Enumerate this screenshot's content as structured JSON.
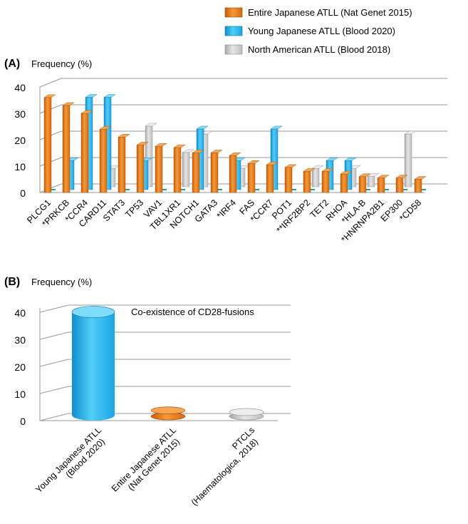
{
  "colors": {
    "japan": "#e87511",
    "young": "#19b2ee",
    "na": "#c7c7c7",
    "grid": "#999999",
    "teal": "#1aa0a6"
  },
  "legend": [
    {
      "key": "japan",
      "label": "Entire Japanese ATLL (Nat Genet 2015)"
    },
    {
      "key": "young",
      "label": "Young Japanese ATLL (Blood 2020)"
    },
    {
      "key": "na",
      "label": "North American ATLL (Blood 2018)"
    }
  ],
  "chart_data": [
    {
      "panel": "(A)",
      "type": "bar",
      "ylabel": "Frequency (%)",
      "ylim": [
        0,
        40
      ],
      "yticks": [
        "0",
        "10",
        "20",
        "30",
        "40"
      ],
      "grid": true,
      "legend_position": "top",
      "categories": [
        "PLCG1",
        "*PRKCB",
        "*CCR4",
        "CARD11",
        "STAT3",
        "TP53",
        "VAV1",
        "TBL1XR1",
        "NOTCH1",
        "GATA3",
        "*IRF4",
        "FAS",
        "*CCR7",
        "POT1",
        "**IRF2BP2",
        "TET2",
        "RHOA",
        "*HLA-B",
        "*HNRNPA2B1",
        "EP300",
        "*CD58"
      ],
      "series": [
        {
          "name": "Entire Japanese ATLL (Nat Genet 2015)",
          "key": "japan",
          "values": [
            36,
            33,
            30,
            24,
            21,
            18,
            17.5,
            17,
            15,
            15,
            14,
            11,
            10.5,
            9.5,
            8,
            8,
            7,
            6,
            5.5,
            5.5,
            5
          ]
        },
        {
          "name": "Young Japanese ATLL (Blood 2020)",
          "key": "young",
          "values": [
            0,
            11,
            35,
            35,
            0,
            11,
            0,
            0,
            23,
            0,
            11,
            0,
            23,
            0,
            0,
            11,
            11,
            0,
            0,
            0,
            0
          ]
        },
        {
          "name": "North American ATLL (Blood 2018)",
          "key": "na",
          "values": [
            0,
            0,
            0,
            7,
            0,
            23,
            0,
            13,
            20,
            0,
            7,
            0,
            0,
            0,
            7,
            0,
            7,
            4,
            0,
            20,
            0
          ]
        }
      ]
    },
    {
      "panel": "(B)",
      "type": "bar",
      "title": "Co-existence of CD28-fusions",
      "ylabel": "Frequency (%)",
      "ylim": [
        0,
        40
      ],
      "yticks": [
        "0",
        "10",
        "20",
        "30",
        "40"
      ],
      "grid": true,
      "categories": [
        [
          "Young Japanese ATLL",
          "(Blood 2020)"
        ],
        [
          "Entire Japanese ATLL",
          "(Nat Genet 2015)"
        ],
        [
          "PTCLs",
          "(Haematologica, 2018)"
        ]
      ],
      "values": [
        38,
        1.4,
        0.8
      ],
      "bar_keys": [
        "young",
        "japan",
        "na"
      ]
    }
  ]
}
